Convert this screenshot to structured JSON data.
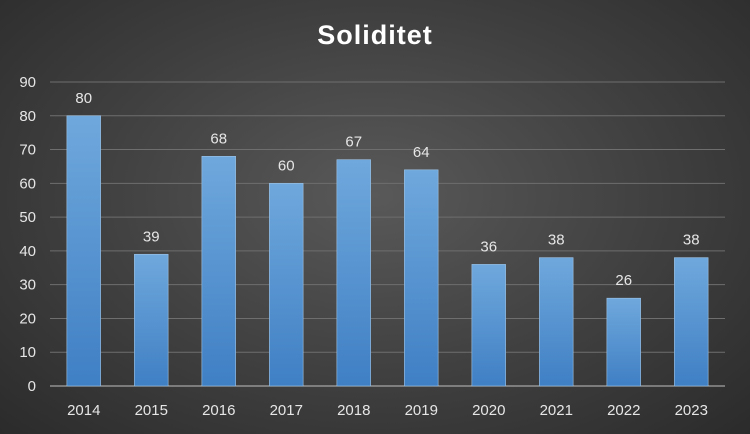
{
  "chart_data": {
    "type": "bar",
    "title": "Soliditet",
    "categories": [
      "2014",
      "2015",
      "2016",
      "2017",
      "2018",
      "2019",
      "2020",
      "2021",
      "2022",
      "2023"
    ],
    "values": [
      80,
      39,
      68,
      60,
      67,
      64,
      36,
      38,
      26,
      38
    ],
    "data_labels": [
      "80",
      "39",
      "68",
      "60",
      "67",
      "64",
      "36",
      "38",
      "26",
      "38"
    ],
    "ylim": [
      0,
      90
    ],
    "y_ticks": [
      "0",
      "10",
      "20",
      "30",
      "40",
      "50",
      "60",
      "70",
      "80",
      "90"
    ],
    "grid": true,
    "bar_color": "#5b9bd5",
    "xlabel": "",
    "ylabel": ""
  }
}
